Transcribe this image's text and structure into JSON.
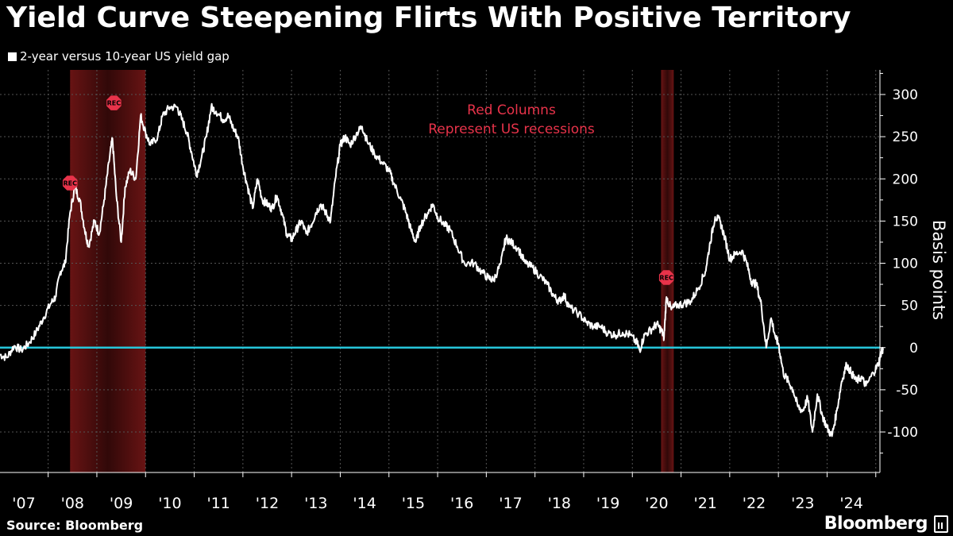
{
  "header": {
    "title": "Yield Curve Steepening Flirts With Positive Territory",
    "legend_label": "2-year versus 10-year US yield gap"
  },
  "footer": {
    "source": "Source: Bloomberg",
    "brand": "Bloomberg"
  },
  "colors": {
    "background": "#000000",
    "line": "#ffffff",
    "zero_line": "#26c6da",
    "recession": "#8b1c1c",
    "annotation": "#e8334a",
    "grid": "#555555"
  },
  "chart_data": {
    "type": "line",
    "ylabel": "Basis points",
    "xlabel": "",
    "ylim": [
      -150,
      330
    ],
    "yticks": [
      -100,
      -50,
      0,
      50,
      100,
      150,
      200,
      250,
      300
    ],
    "x_tick_labels": [
      "'07",
      "'08",
      "'09",
      "'10",
      "'11",
      "'12",
      "'13",
      "'14",
      "'15",
      "'16",
      "'17",
      "'18",
      "'19",
      "'20",
      "'21",
      "'22",
      "'23",
      "'24"
    ],
    "xlim": [
      2006.5,
      2024.95
    ],
    "grid": true,
    "annotation": [
      "Red Columns",
      "Represent US recessions"
    ],
    "recessions": [
      {
        "start": 2007.95,
        "end": 2009.5,
        "marker": "REC"
      },
      {
        "start": 2020.09,
        "end": 2020.35,
        "marker": "REC"
      }
    ],
    "rec_markers": [
      {
        "x": 2007.95,
        "y": 195,
        "label": "REC"
      },
      {
        "x": 2008.85,
        "y": 290,
        "label": "REC"
      },
      {
        "x": 2020.2,
        "y": 83,
        "label": "REC"
      }
    ],
    "series": [
      {
        "values": [
          [
            2006.5,
            -8
          ],
          [
            2006.65,
            -12
          ],
          [
            2006.8,
            2
          ],
          [
            2006.95,
            -3
          ],
          [
            2007.1,
            5
          ],
          [
            2007.25,
            18
          ],
          [
            2007.4,
            35
          ],
          [
            2007.55,
            52
          ],
          [
            2007.65,
            60
          ],
          [
            2007.75,
            90
          ],
          [
            2007.85,
            100
          ],
          [
            2007.95,
            160
          ],
          [
            2008.05,
            190
          ],
          [
            2008.15,
            175
          ],
          [
            2008.25,
            140
          ],
          [
            2008.33,
            120
          ],
          [
            2008.45,
            150
          ],
          [
            2008.55,
            135
          ],
          [
            2008.65,
            175
          ],
          [
            2008.75,
            220
          ],
          [
            2008.82,
            248
          ],
          [
            2008.9,
            180
          ],
          [
            2009.0,
            125
          ],
          [
            2009.08,
            190
          ],
          [
            2009.18,
            210
          ],
          [
            2009.3,
            200
          ],
          [
            2009.4,
            275
          ],
          [
            2009.5,
            255
          ],
          [
            2009.6,
            240
          ],
          [
            2009.75,
            250
          ],
          [
            2009.85,
            275
          ],
          [
            2010.0,
            285
          ],
          [
            2010.15,
            285
          ],
          [
            2010.25,
            270
          ],
          [
            2010.35,
            255
          ],
          [
            2010.45,
            230
          ],
          [
            2010.55,
            205
          ],
          [
            2010.65,
            225
          ],
          [
            2010.75,
            250
          ],
          [
            2010.85,
            285
          ],
          [
            2010.95,
            280
          ],
          [
            2011.1,
            270
          ],
          [
            2011.2,
            275
          ],
          [
            2011.3,
            260
          ],
          [
            2011.4,
            250
          ],
          [
            2011.5,
            215
          ],
          [
            2011.6,
            190
          ],
          [
            2011.7,
            165
          ],
          [
            2011.8,
            200
          ],
          [
            2011.9,
            175
          ],
          [
            2012.0,
            170
          ],
          [
            2012.1,
            165
          ],
          [
            2012.2,
            180
          ],
          [
            2012.3,
            160
          ],
          [
            2012.4,
            135
          ],
          [
            2012.5,
            128
          ],
          [
            2012.6,
            140
          ],
          [
            2012.7,
            150
          ],
          [
            2012.8,
            135
          ],
          [
            2012.9,
            145
          ],
          [
            2013.0,
            160
          ],
          [
            2013.1,
            170
          ],
          [
            2013.2,
            160
          ],
          [
            2013.3,
            150
          ],
          [
            2013.4,
            200
          ],
          [
            2013.5,
            240
          ],
          [
            2013.6,
            250
          ],
          [
            2013.7,
            240
          ],
          [
            2013.85,
            255
          ],
          [
            2013.95,
            262
          ],
          [
            2014.05,
            245
          ],
          [
            2014.2,
            230
          ],
          [
            2014.35,
            220
          ],
          [
            2014.5,
            210
          ],
          [
            2014.6,
            195
          ],
          [
            2014.75,
            175
          ],
          [
            2014.85,
            160
          ],
          [
            2014.95,
            140
          ],
          [
            2015.05,
            125
          ],
          [
            2015.15,
            145
          ],
          [
            2015.3,
            160
          ],
          [
            2015.4,
            170
          ],
          [
            2015.5,
            155
          ],
          [
            2015.65,
            145
          ],
          [
            2015.75,
            140
          ],
          [
            2015.9,
            120
          ],
          [
            2016.05,
            100
          ],
          [
            2016.25,
            100
          ],
          [
            2016.4,
            90
          ],
          [
            2016.55,
            82
          ],
          [
            2016.65,
            80
          ],
          [
            2016.8,
            100
          ],
          [
            2016.9,
            130
          ],
          [
            2017.0,
            125
          ],
          [
            2017.15,
            118
          ],
          [
            2017.3,
            100
          ],
          [
            2017.45,
            95
          ],
          [
            2017.6,
            85
          ],
          [
            2017.75,
            75
          ],
          [
            2017.9,
            60
          ],
          [
            2018.0,
            55
          ],
          [
            2018.1,
            62
          ],
          [
            2018.2,
            48
          ],
          [
            2018.4,
            40
          ],
          [
            2018.55,
            30
          ],
          [
            2018.7,
            25
          ],
          [
            2018.85,
            25
          ],
          [
            2019.0,
            17
          ],
          [
            2019.15,
            15
          ],
          [
            2019.3,
            18
          ],
          [
            2019.45,
            15
          ],
          [
            2019.6,
            5
          ],
          [
            2019.65,
            -3
          ],
          [
            2019.75,
            15
          ],
          [
            2019.9,
            22
          ],
          [
            2020.0,
            28
          ],
          [
            2020.1,
            20
          ],
          [
            2020.15,
            12
          ],
          [
            2020.2,
            60
          ],
          [
            2020.3,
            45
          ],
          [
            2020.4,
            50
          ],
          [
            2020.55,
            52
          ],
          [
            2020.7,
            55
          ],
          [
            2020.85,
            70
          ],
          [
            2021.0,
            90
          ],
          [
            2021.1,
            125
          ],
          [
            2021.2,
            155
          ],
          [
            2021.3,
            150
          ],
          [
            2021.4,
            130
          ],
          [
            2021.5,
            105
          ],
          [
            2021.6,
            110
          ],
          [
            2021.75,
            115
          ],
          [
            2021.85,
            100
          ],
          [
            2021.95,
            78
          ],
          [
            2022.05,
            75
          ],
          [
            2022.15,
            50
          ],
          [
            2022.25,
            0
          ],
          [
            2022.35,
            35
          ],
          [
            2022.45,
            10
          ],
          [
            2022.5,
            5
          ],
          [
            2022.6,
            -30
          ],
          [
            2022.7,
            -40
          ],
          [
            2022.8,
            -50
          ],
          [
            2022.9,
            -70
          ],
          [
            2023.0,
            -75
          ],
          [
            2023.1,
            -60
          ],
          [
            2023.2,
            -100
          ],
          [
            2023.3,
            -55
          ],
          [
            2023.4,
            -80
          ],
          [
            2023.5,
            -95
          ],
          [
            2023.6,
            -105
          ],
          [
            2023.7,
            -75
          ],
          [
            2023.8,
            -40
          ],
          [
            2023.9,
            -20
          ],
          [
            2024.0,
            -30
          ],
          [
            2024.1,
            -40
          ],
          [
            2024.2,
            -35
          ],
          [
            2024.3,
            -45
          ],
          [
            2024.45,
            -30
          ],
          [
            2024.55,
            -20
          ],
          [
            2024.62,
            -3
          ],
          [
            2024.65,
            -3
          ]
        ]
      }
    ]
  }
}
